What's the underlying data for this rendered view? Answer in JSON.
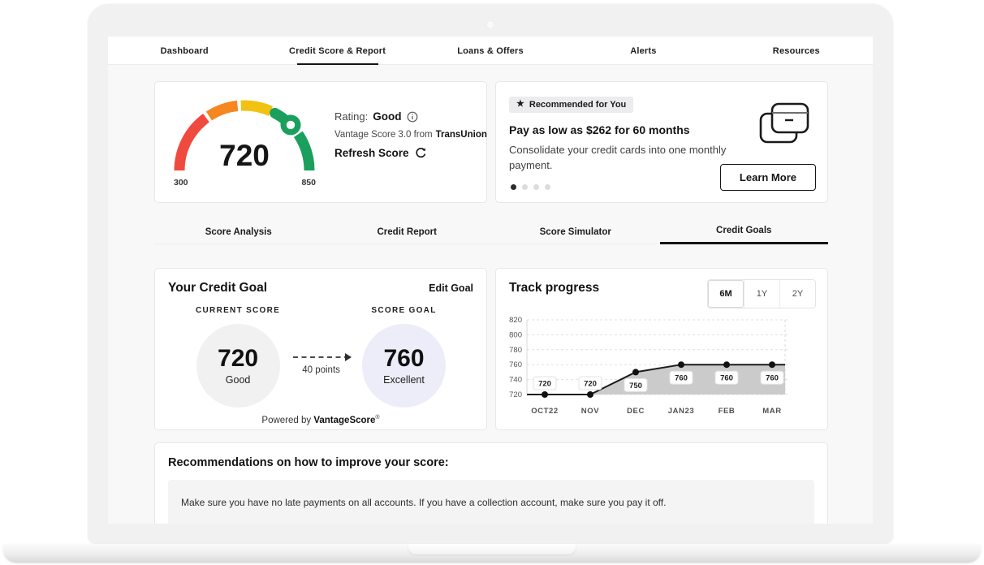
{
  "nav": {
    "items": [
      {
        "label": "Dashboard",
        "active": false
      },
      {
        "label": "Credit Score & Report",
        "active": true
      },
      {
        "label": "Loans & Offers",
        "active": false
      },
      {
        "label": "Alerts",
        "active": false
      },
      {
        "label": "Resources",
        "active": false
      }
    ]
  },
  "score_card": {
    "score": "720",
    "min": "300",
    "max": "850",
    "rating_label": "Rating:",
    "rating_value": "Good",
    "provider_prefix": "Vantage Score 3.0 from",
    "provider": "TransUnion",
    "refresh_label": "Refresh Score"
  },
  "offer_card": {
    "badge": "Recommended for You",
    "headline": "Pay as low as $262 for 60 months",
    "body": "Consolidate your credit cards into one monthly payment.",
    "cta": "Learn More",
    "dot_count": 4,
    "active_dot": 0
  },
  "sub_tabs": {
    "items": [
      {
        "label": "Score Analysis",
        "active": false
      },
      {
        "label": "Credit Report",
        "active": false
      },
      {
        "label": "Score Simulator",
        "active": false
      },
      {
        "label": "Credit Goals",
        "active": true
      }
    ]
  },
  "goal_card": {
    "title": "Your Credit Goal",
    "edit_label": "Edit Goal",
    "current_label": "CURRENT SCORE",
    "current_score": "720",
    "current_rating": "Good",
    "goal_label": "SCORE GOAL",
    "goal_score": "760",
    "goal_rating": "Excellent",
    "delta_label": "40 points",
    "powered_prefix": "Powered by ",
    "powered_brand": "VantageScore",
    "powered_mark": "®"
  },
  "progress_card": {
    "title": "Track progress",
    "ranges": [
      {
        "label": "6M",
        "active": true
      },
      {
        "label": "1Y",
        "active": false
      },
      {
        "label": "2Y",
        "active": false
      }
    ]
  },
  "chart_data": {
    "type": "area",
    "title": "Track progress",
    "x": [
      "OCT22",
      "NOV",
      "DEC",
      "JAN23",
      "FEB",
      "MAR"
    ],
    "series": [
      {
        "name": "credit-score",
        "values": [
          720,
          720,
          750,
          760,
          760,
          760
        ]
      }
    ],
    "point_labels": [
      "720",
      "720",
      "750",
      "760",
      "760",
      "760"
    ],
    "ylim": [
      720,
      820
    ],
    "yticks": [
      820,
      800,
      780,
      760,
      740,
      720
    ],
    "grid": "dashed-horizontal",
    "legend": false,
    "line_color": "#1c1c1c",
    "fill_color": "#cbcbcb",
    "point_color": "#111111"
  },
  "recommendations": {
    "title": "Recommendations on how to improve your score:",
    "items": [
      "Make sure you have no late payments on all accounts. If you have a collection account, make sure you pay it off."
    ]
  },
  "colors": {
    "gauge_red": "#f04a3e",
    "gauge_orange": "#f6861f",
    "gauge_yellow": "#f2c213",
    "gauge_green": "#1aa05c",
    "current_circle": "#f1f1f2",
    "goal_circle": "#ededf9",
    "accent_dark": "#111111"
  }
}
